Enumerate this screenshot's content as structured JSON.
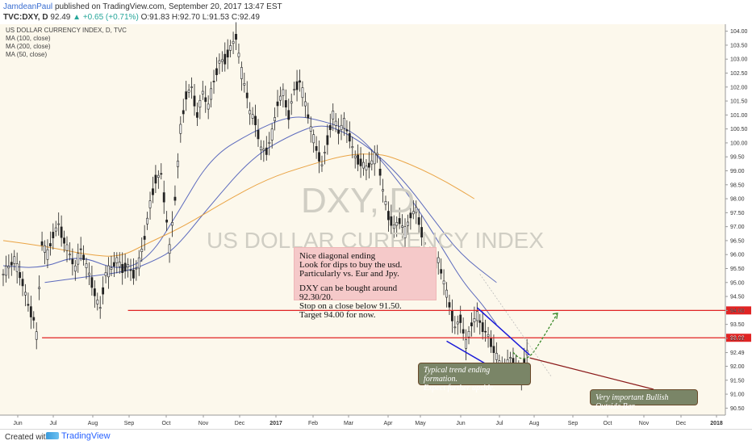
{
  "header": {
    "author": "JamdeanPaul",
    "published": "published on TradingView.com, September 20, 2017 13:47 EST",
    "symbol": "TVC:DXY, D",
    "last": "92.49",
    "change": "+0.65 (+0.71%)",
    "ohlc": "O:91.83 H:92.70 L:91.53 C:92.49"
  },
  "legend": {
    "title": "US DOLLAR CURRENCY INDEX, D, TVC",
    "ma100": "MA (100, close)",
    "ma200": "MA (200, close)",
    "ma50": "MA (50, close)"
  },
  "watermark": {
    "symbol": "DXY, D",
    "name": "US DOLLAR CURRENCY INDEX"
  },
  "note": {
    "lines": [
      "Nice diagonal ending",
      "Look for dips to buy the usd.",
      "Particularly vs. Eur and Jpy.",
      "",
      "DXY can be bought around 92.30/20.",
      "Stop on a close below 91.50.",
      "Target 94.00 for now."
    ]
  },
  "callouts": {
    "trend": [
      "Typical trend ending formation.",
      "Expect further upside."
    ],
    "outside_bar": "Very important Bullish Outside Bar"
  },
  "footer": {
    "created": "Created with",
    "brand": "TradingView"
  },
  "chart_data": {
    "type": "candlestick",
    "title": "US DOLLAR CURRENCY INDEX, D, TVC",
    "x_ticks": [
      "Jun",
      "Jul",
      "Aug",
      "Sep",
      "Oct",
      "Nov",
      "Dec",
      "2017",
      "Feb",
      "Mar",
      "Apr",
      "May",
      "Jun",
      "Jul",
      "Aug",
      "Sep",
      "Oct",
      "Nov",
      "Dec",
      "2018"
    ],
    "y_ticks": [
      "104.00",
      "103.50",
      "103.00",
      "102.50",
      "102.00",
      "101.50",
      "101.00",
      "100.50",
      "100.00",
      "99.50",
      "99.00",
      "98.50",
      "98.00",
      "97.50",
      "97.00",
      "96.50",
      "96.00",
      "95.50",
      "95.00",
      "94.50",
      "94.00",
      "93.50",
      "93.00",
      "92.49",
      "92.00",
      "91.50",
      "91.00",
      "90.50"
    ],
    "ylim": [
      90.25,
      104.25
    ],
    "last_price": 92.49,
    "horizontal_levels": [
      94.0,
      93.02
    ],
    "level_labels": [
      "94.00",
      "93.02"
    ],
    "price_path": [
      [
        0,
        95.3
      ],
      [
        4,
        95.8
      ],
      [
        7,
        95.0
      ],
      [
        9,
        94.2
      ],
      [
        11,
        93.7
      ],
      [
        12,
        93.1
      ],
      [
        13,
        94.8
      ],
      [
        14,
        96.4
      ],
      [
        16,
        96.0
      ],
      [
        18,
        96.7
      ],
      [
        20,
        97.1
      ],
      [
        22,
        96.5
      ],
      [
        24,
        96.0
      ],
      [
        26,
        95.5
      ],
      [
        28,
        96.2
      ],
      [
        30,
        95.6
      ],
      [
        32,
        95.0
      ],
      [
        34,
        94.3
      ],
      [
        35,
        94.1
      ],
      [
        37,
        95.3
      ],
      [
        39,
        95.5
      ],
      [
        41,
        95.8
      ],
      [
        43,
        95.5
      ],
      [
        45,
        95.6
      ],
      [
        47,
        95.3
      ],
      [
        49,
        95.7
      ],
      [
        51,
        96.6
      ],
      [
        53,
        97.8
      ],
      [
        55,
        98.7
      ],
      [
        57,
        98.9
      ],
      [
        59,
        97.2
      ],
      [
        60,
        96.2
      ],
      [
        62,
        98.0
      ],
      [
        64,
        100.5
      ],
      [
        66,
        101.7
      ],
      [
        68,
        102.0
      ],
      [
        70,
        101.0
      ],
      [
        72,
        101.8
      ],
      [
        74,
        101.3
      ],
      [
        76,
        102.2
      ],
      [
        78,
        102.9
      ],
      [
        80,
        103.0
      ],
      [
        82,
        103.4
      ],
      [
        84,
        103.8
      ],
      [
        86,
        102.5
      ],
      [
        88,
        101.7
      ],
      [
        89,
        101.1
      ],
      [
        91,
        100.8
      ],
      [
        93,
        99.8
      ],
      [
        95,
        99.7
      ],
      [
        97,
        100.3
      ],
      [
        99,
        101.4
      ],
      [
        101,
        101.8
      ],
      [
        103,
        101.0
      ],
      [
        105,
        101.9
      ],
      [
        107,
        102.2
      ],
      [
        109,
        101.4
      ],
      [
        111,
        100.5
      ],
      [
        113,
        99.8
      ],
      [
        115,
        99.2
      ],
      [
        117,
        100.1
      ],
      [
        119,
        101.0
      ],
      [
        121,
        100.4
      ],
      [
        123,
        100.7
      ],
      [
        125,
        100.2
      ],
      [
        127,
        99.5
      ],
      [
        129,
        99.3
      ],
      [
        131,
        99.1
      ],
      [
        133,
        99.3
      ],
      [
        135,
        99.6
      ],
      [
        137,
        98.3
      ],
      [
        139,
        97.4
      ],
      [
        141,
        97.0
      ],
      [
        143,
        97.2
      ],
      [
        145,
        96.8
      ],
      [
        147,
        97.4
      ],
      [
        149,
        97.6
      ],
      [
        151,
        96.8
      ],
      [
        153,
        96.0
      ],
      [
        155,
        95.6
      ],
      [
        157,
        95.8
      ],
      [
        159,
        95.0
      ],
      [
        161,
        94.2
      ],
      [
        163,
        93.4
      ],
      [
        165,
        93.7
      ],
      [
        167,
        92.8
      ],
      [
        169,
        93.5
      ],
      [
        171,
        93.8
      ],
      [
        173,
        93.4
      ],
      [
        175,
        93.1
      ],
      [
        177,
        92.6
      ],
      [
        179,
        92.1
      ],
      [
        181,
        91.8
      ],
      [
        183,
        92.3
      ],
      [
        185,
        92.0
      ],
      [
        187,
        91.7
      ],
      [
        189,
        92.49
      ]
    ],
    "moving_averages": [
      {
        "name": "MA (50, close)",
        "color": "#3f51b5",
        "points": [
          [
            0,
            95.6
          ],
          [
            14,
            95.5
          ],
          [
            27,
            96.0
          ],
          [
            42,
            95.4
          ],
          [
            53,
            95.9
          ],
          [
            63,
            97.5
          ],
          [
            75,
            99.5
          ],
          [
            90,
            100.4
          ],
          [
            104,
            101.0
          ],
          [
            115,
            100.8
          ],
          [
            127,
            100.4
          ],
          [
            138,
            99.2
          ],
          [
            148,
            97.9
          ],
          [
            158,
            96.3
          ],
          [
            166,
            95.0
          ],
          [
            173,
            94.2
          ],
          [
            178,
            93.5
          ]
        ]
      },
      {
        "name": "MA (100, close)",
        "color": "#3f51b5",
        "points": [
          [
            15,
            95.0
          ],
          [
            30,
            95.2
          ],
          [
            45,
            95.4
          ],
          [
            55,
            95.8
          ],
          [
            62,
            96.2
          ],
          [
            75,
            97.8
          ],
          [
            90,
            99.5
          ],
          [
            104,
            100.3
          ],
          [
            115,
            100.7
          ],
          [
            125,
            100.3
          ],
          [
            135,
            99.6
          ],
          [
            145,
            98.6
          ],
          [
            155,
            97.3
          ],
          [
            165,
            96.0
          ],
          [
            178,
            95.0
          ]
        ]
      },
      {
        "name": "MA (200, close)",
        "color": "#e69528",
        "points": [
          [
            0,
            96.5
          ],
          [
            15,
            96.3
          ],
          [
            30,
            96.0
          ],
          [
            42,
            95.9
          ],
          [
            52,
            96.4
          ],
          [
            65,
            97.0
          ],
          [
            80,
            97.9
          ],
          [
            95,
            98.7
          ],
          [
            110,
            99.2
          ],
          [
            125,
            99.6
          ],
          [
            135,
            99.6
          ],
          [
            140,
            99.5
          ],
          [
            150,
            99.1
          ],
          [
            160,
            98.6
          ],
          [
            170,
            98.0
          ]
        ]
      }
    ],
    "annotations": [
      "Nice diagonal ending",
      "Typical trend ending formation.",
      "Very important Bullish Outside Bar"
    ]
  }
}
